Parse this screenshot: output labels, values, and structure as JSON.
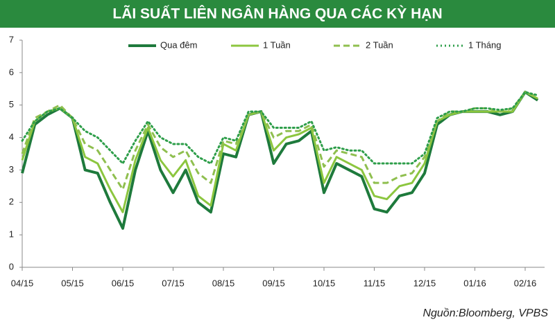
{
  "chart_data": {
    "type": "line",
    "title": "LÃI SUẤT LIÊN NGÂN HÀNG QUA CÁC KỲ HẠN",
    "source": "Nguồn:Bloomberg, VPBS",
    "categories": [
      "04/15",
      null,
      null,
      null,
      "05/15",
      null,
      null,
      null,
      "06/15",
      null,
      null,
      null,
      "07/15",
      null,
      null,
      null,
      "08/15",
      null,
      null,
      null,
      "09/15",
      null,
      null,
      null,
      "10/15",
      null,
      null,
      null,
      "11/15",
      null,
      null,
      null,
      "12/15",
      null,
      null,
      null,
      "01/16",
      null,
      null,
      null,
      "02/16",
      null
    ],
    "series": [
      {
        "name": "Qua đêm",
        "color": "#1e7a3c",
        "style": "solid",
        "values": [
          2.9,
          4.4,
          4.7,
          4.9,
          4.6,
          3.0,
          2.9,
          2.0,
          1.2,
          3.0,
          4.2,
          3.0,
          2.3,
          3.0,
          2.0,
          1.7,
          3.5,
          3.4,
          4.7,
          4.8,
          3.2,
          3.8,
          3.9,
          4.2,
          2.3,
          3.2,
          3.0,
          2.8,
          1.8,
          1.7,
          2.2,
          2.3,
          2.9,
          4.4,
          4.7,
          4.8,
          4.8,
          4.8,
          4.7,
          4.8,
          5.4,
          5.15
        ]
      },
      {
        "name": "1 Tuần",
        "color": "#8cc63f",
        "style": "solid",
        "values": [
          3.3,
          4.5,
          4.8,
          4.9,
          4.6,
          3.4,
          3.2,
          2.4,
          1.7,
          3.3,
          4.3,
          3.3,
          2.8,
          3.3,
          2.2,
          1.9,
          3.8,
          3.6,
          4.7,
          4.8,
          3.6,
          4.0,
          4.1,
          4.3,
          2.6,
          3.4,
          3.2,
          3.0,
          2.2,
          2.1,
          2.5,
          2.6,
          3.2,
          4.5,
          4.7,
          4.8,
          4.8,
          4.8,
          4.8,
          4.8,
          5.4,
          5.2
        ]
      },
      {
        "name": "2 Tuần",
        "color": "#8fbf4f",
        "style": "dashed",
        "values": [
          3.5,
          4.6,
          4.8,
          5.0,
          4.6,
          3.8,
          3.6,
          3.0,
          2.4,
          3.6,
          4.4,
          3.7,
          3.4,
          3.6,
          2.9,
          2.6,
          3.9,
          3.8,
          4.7,
          4.8,
          4.0,
          4.2,
          4.2,
          4.4,
          3.1,
          3.6,
          3.5,
          3.4,
          2.6,
          2.6,
          2.8,
          2.9,
          3.4,
          4.5,
          4.8,
          4.8,
          4.9,
          4.9,
          4.8,
          4.9,
          5.4,
          5.25
        ]
      },
      {
        "name": "1 Tháng",
        "color": "#2e9e4a",
        "style": "dotted",
        "values": [
          3.9,
          4.5,
          4.8,
          4.9,
          4.6,
          4.2,
          4.0,
          3.6,
          3.2,
          3.9,
          4.5,
          4.0,
          3.8,
          3.8,
          3.4,
          3.2,
          4.0,
          3.9,
          4.8,
          4.8,
          4.3,
          4.3,
          4.3,
          4.5,
          3.6,
          3.7,
          3.6,
          3.6,
          3.2,
          3.2,
          3.2,
          3.2,
          3.5,
          4.6,
          4.8,
          4.8,
          4.9,
          4.9,
          4.85,
          4.9,
          5.4,
          5.3
        ]
      }
    ],
    "ylim": [
      0,
      7
    ],
    "yticks": [
      0,
      1,
      2,
      3,
      4,
      5,
      6,
      7
    ],
    "grid": false
  }
}
